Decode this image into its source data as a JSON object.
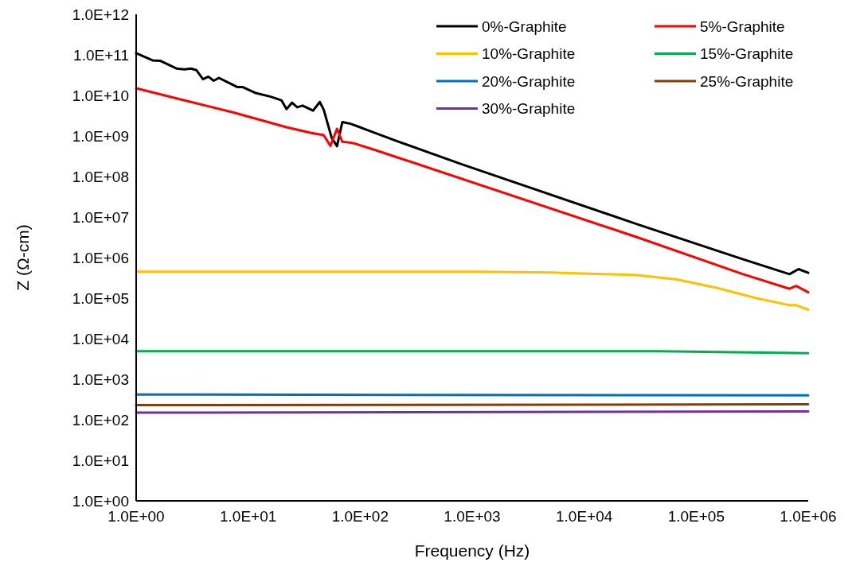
{
  "chart_data": {
    "type": "line",
    "xlabel": "Frequency (Hz)",
    "ylabel": "Z (Ω-cm)",
    "log": "xy",
    "grid": false,
    "legend": "top right",
    "marker": "none",
    "line_style": "solid",
    "xlim": [
      1,
      1000000
    ],
    "ylim": [
      1,
      1000000000000
    ],
    "xticks": [
      {
        "value": 1,
        "label": "1.0E+00"
      },
      {
        "value": 10,
        "label": "1.0E+01"
      },
      {
        "value": 100,
        "label": "1.0E+02"
      },
      {
        "value": 1000,
        "label": "1.0E+03"
      },
      {
        "value": 10000,
        "label": "1.0E+04"
      },
      {
        "value": 100000,
        "label": "1.0E+05"
      },
      {
        "value": 1000000,
        "label": "1.0E+06"
      }
    ],
    "yticks": [
      {
        "value": 1,
        "label": "1.0E+00"
      },
      {
        "value": 10,
        "label": "1.0E+01"
      },
      {
        "value": 100,
        "label": "1.0E+02"
      },
      {
        "value": 1000,
        "label": "1.0E+03"
      },
      {
        "value": 10000,
        "label": "1.0E+04"
      },
      {
        "value": 100000,
        "label": "1.0E+05"
      },
      {
        "value": 1000000,
        "label": "1.0E+06"
      },
      {
        "value": 10000000,
        "label": "1.0E+07"
      },
      {
        "value": 100000000,
        "label": "1.0E+08"
      },
      {
        "value": 1000000000,
        "label": "1.0E+09"
      },
      {
        "value": 10000000000,
        "label": "1.0E+10"
      },
      {
        "value": 100000000000,
        "label": "1.0E+11"
      },
      {
        "value": 1000000000000,
        "label": "1.0E+12"
      }
    ],
    "series": [
      {
        "name": "0%-Graphite",
        "color": "#000000",
        "x": [
          1,
          1.4,
          1.65,
          2.29,
          2.7,
          3.09,
          3.45,
          3.95,
          4.41,
          4.92,
          5.48,
          6.82,
          8.03,
          8.96,
          11.5,
          15.9,
          19.8,
          22,
          24.6,
          27.4,
          30.6,
          38,
          43.6,
          47.3,
          55.7,
          62.1,
          69.3,
          81.6,
          96.2,
          116,
          207,
          807,
          29500,
          262000,
          681000,
          820000,
          1000000
        ],
        "values": [
          110000000000.0,
          73000000000.0,
          71000000000.0,
          46000000000.0,
          44000000000.0,
          46000000000.0,
          42000000000.0,
          25000000000.0,
          29000000000.0,
          23000000000.0,
          27000000000.0,
          20000000000.0,
          16000000000.0,
          16000000000.0,
          11600000000.0,
          9300000000.0,
          7600000000.0,
          4600000000.0,
          6600000000.0,
          5100000000.0,
          5600000000.0,
          4200000000.0,
          6900000000.0,
          4400000000.0,
          900000000.0,
          560000000.0,
          2200000000.0,
          2000000000.0,
          1700000000.0,
          1400000000.0,
          770000000.0,
          200000000.0,
          6700000.0,
          910000.0,
          390000.0,
          520000.0,
          420000.0
        ]
      },
      {
        "name": "5%-Graphite",
        "color": "#ff0000",
        "x": [
          1,
          2.49,
          7.4,
          22,
          36,
          47.3,
          54.2,
          62.1,
          69.3,
          86.1,
          133,
          29500,
          262000,
          681000,
          780000,
          1000000
        ],
        "values": [
          15000000000.0,
          8000000000.0,
          3800000000.0,
          1640000000.0,
          1200000000.0,
          1050000000.0,
          570000000.0,
          1500000000.0,
          720000000.0,
          670000000.0,
          460000000.0,
          3200000.0,
          390000.0,
          170000.0,
          200000.0,
          140000.0
        ]
      },
      {
        "name": "10%-Graphite",
        "color": "#ffc000",
        "x": [
          1,
          1000,
          5000,
          29500,
          67000,
          152000,
          344000,
          680000,
          780000,
          1000000
        ],
        "values": [
          450000.0,
          450000.0,
          430000.0,
          370000.0,
          290000.0,
          180000.0,
          100000.0,
          67000.0,
          67000.0,
          52000.0
        ]
      },
      {
        "name": "15%-Graphite",
        "color": "#00b050",
        "x": [
          1,
          46000,
          1000000
        ],
        "values": [
          4900.0,
          4900.0,
          4400.0
        ]
      },
      {
        "name": "20%-Graphite",
        "color": "#0070c0",
        "x": [
          1,
          1000000
        ],
        "values": [
          420,
          400
        ]
      },
      {
        "name": "25%-Graphite",
        "color": "#843c0c",
        "x": [
          1,
          1000000
        ],
        "values": [
          230,
          240
        ]
      },
      {
        "name": "30%-Graphite",
        "color": "#7030a0",
        "x": [
          1,
          1000000
        ],
        "values": [
          150,
          160
        ]
      }
    ]
  }
}
